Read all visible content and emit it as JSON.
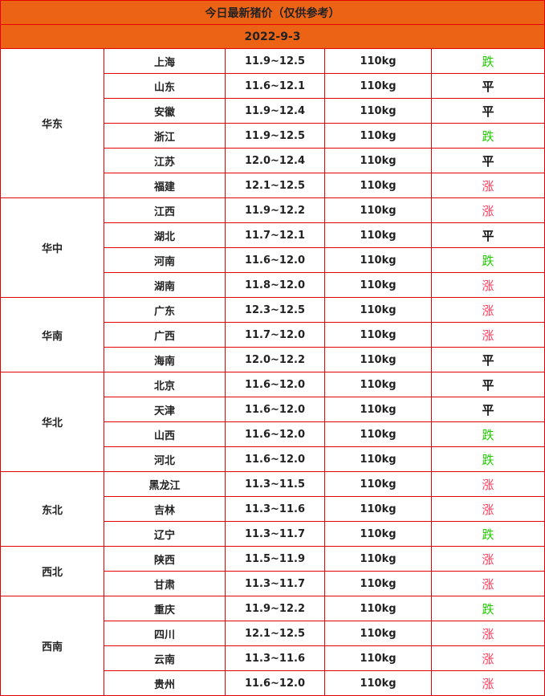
{
  "title": "今日最新猪价（仅供参考）",
  "date": "2022-9-3",
  "colors": {
    "header_bg": "#ec6316",
    "border": "#e60000",
    "up": "#ff3b5c",
    "down": "#22cc00",
    "flat": "#111111"
  },
  "regions": [
    {
      "name": "华东",
      "rows": [
        {
          "province": "上海",
          "price": "11.9~12.5",
          "weight": "110kg",
          "trend": "跌"
        },
        {
          "province": "山东",
          "price": "11.6~12.1",
          "weight": "110kg",
          "trend": "平"
        },
        {
          "province": "安徽",
          "price": "11.9~12.4",
          "weight": "110kg",
          "trend": "平"
        },
        {
          "province": "浙江",
          "price": "11.9~12.5",
          "weight": "110kg",
          "trend": "跌"
        },
        {
          "province": "江苏",
          "price": "12.0~12.4",
          "weight": "110kg",
          "trend": "平"
        },
        {
          "province": "福建",
          "price": "12.1~12.5",
          "weight": "110kg",
          "trend": "涨"
        }
      ]
    },
    {
      "name": "华中",
      "rows": [
        {
          "province": "江西",
          "price": "11.9~12.2",
          "weight": "110kg",
          "trend": "涨"
        },
        {
          "province": "湖北",
          "price": "11.7~12.1",
          "weight": "110kg",
          "trend": "平"
        },
        {
          "province": "河南",
          "price": "11.6~12.0",
          "weight": "110kg",
          "trend": "跌"
        },
        {
          "province": "湖南",
          "price": "11.8~12.0",
          "weight": "110kg",
          "trend": "涨"
        }
      ]
    },
    {
      "name": "华南",
      "rows": [
        {
          "province": "广东",
          "price": "12.3~12.5",
          "weight": "110kg",
          "trend": "涨"
        },
        {
          "province": "广西",
          "price": "11.7~12.0",
          "weight": "110kg",
          "trend": "涨"
        },
        {
          "province": "海南",
          "price": "12.0~12.2",
          "weight": "110kg",
          "trend": "平"
        }
      ]
    },
    {
      "name": "华北",
      "rows": [
        {
          "province": "北京",
          "price": "11.6~12.0",
          "weight": "110kg",
          "trend": "平"
        },
        {
          "province": "天津",
          "price": "11.6~12.0",
          "weight": "110kg",
          "trend": "平"
        },
        {
          "province": "山西",
          "price": "11.6~12.0",
          "weight": "110kg",
          "trend": "跌"
        },
        {
          "province": "河北",
          "price": "11.6~12.0",
          "weight": "110kg",
          "trend": "跌"
        }
      ]
    },
    {
      "name": "东北",
      "rows": [
        {
          "province": "黑龙江",
          "price": "11.3~11.5",
          "weight": "110kg",
          "trend": "涨"
        },
        {
          "province": "吉林",
          "price": "11.3~11.6",
          "weight": "110kg",
          "trend": "涨"
        },
        {
          "province": "辽宁",
          "price": "11.3~11.7",
          "weight": "110kg",
          "trend": "跌"
        }
      ]
    },
    {
      "name": "西北",
      "rows": [
        {
          "province": "陕西",
          "price": "11.5~11.9",
          "weight": "110kg",
          "trend": "涨"
        },
        {
          "province": "甘肃",
          "price": "11.3~11.7",
          "weight": "110kg",
          "trend": "涨"
        }
      ]
    },
    {
      "name": "西南",
      "rows": [
        {
          "province": "重庆",
          "price": "11.9~12.2",
          "weight": "110kg",
          "trend": "跌"
        },
        {
          "province": "四川",
          "price": "12.1~12.5",
          "weight": "110kg",
          "trend": "涨"
        },
        {
          "province": "云南",
          "price": "11.3~11.6",
          "weight": "110kg",
          "trend": "涨"
        },
        {
          "province": "贵州",
          "price": "11.6~12.0",
          "weight": "110kg",
          "trend": "涨"
        }
      ]
    }
  ]
}
